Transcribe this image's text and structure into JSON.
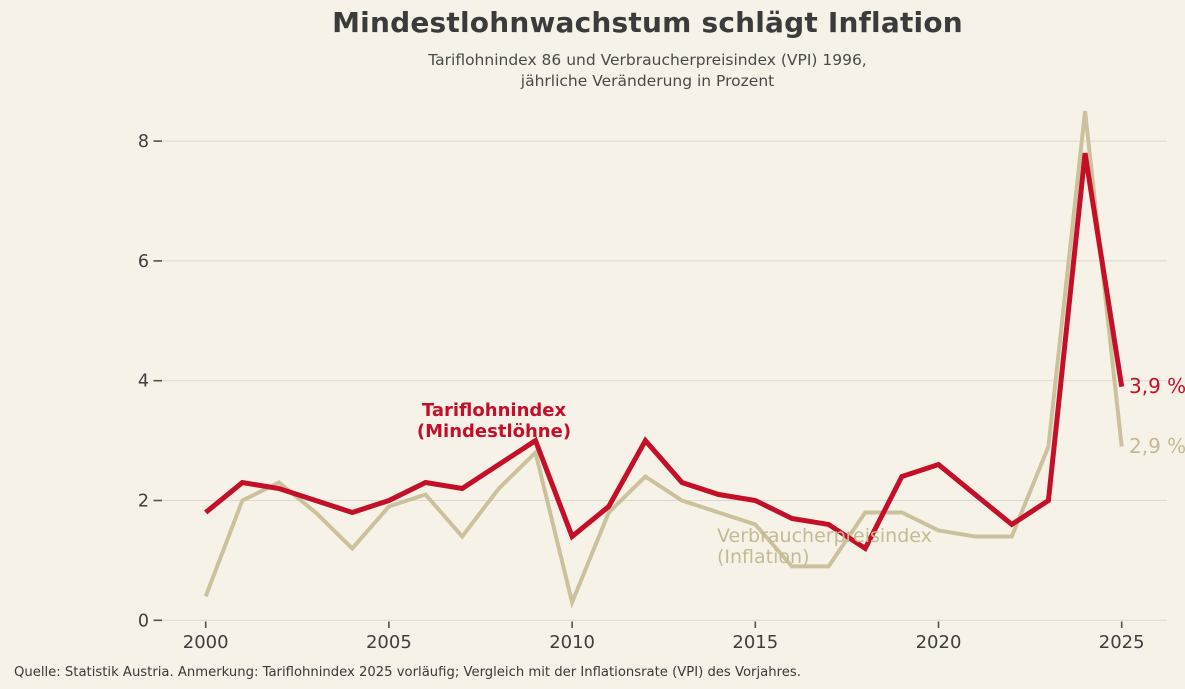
{
  "header": {
    "title": "Mindestlohnwachstum schlägt Inflation",
    "subtitle_line1": "Tariflohnindex 86 und Verbraucherpreisindex (VPI) 1996,",
    "subtitle_line2": "jährliche Veränderung in Prozent"
  },
  "chart_data": {
    "type": "line",
    "x": [
      2000,
      2001,
      2002,
      2003,
      2004,
      2005,
      2006,
      2007,
      2008,
      2009,
      2010,
      2011,
      2012,
      2013,
      2014,
      2015,
      2016,
      2017,
      2018,
      2019,
      2020,
      2021,
      2022,
      2023,
      2024,
      2025
    ],
    "x_ticks": [
      2000,
      2005,
      2010,
      2015,
      2020,
      2025
    ],
    "y_ticks": [
      0,
      2,
      4,
      6,
      8
    ],
    "ylim": [
      0,
      8.6
    ],
    "grid": true,
    "legend_position": "inline-annotations",
    "series": [
      {
        "name": "Tariflohnindex (Mindestlöhne)",
        "color": "#c50f28",
        "label_color": "#c50f28",
        "line_width": 5,
        "values": [
          1.8,
          2.3,
          2.2,
          2.0,
          1.8,
          2.0,
          2.3,
          2.2,
          2.6,
          3.0,
          1.4,
          1.9,
          3.0,
          2.3,
          2.1,
          2.0,
          1.7,
          1.6,
          1.2,
          2.4,
          2.6,
          2.1,
          1.6,
          2.0,
          7.8,
          3.9
        ],
        "annotation_line1": "Tariflohnindex",
        "annotation_line2": "(Mindestlöhne)",
        "end_label": "3,9 %"
      },
      {
        "name": "Verbraucherpreisindex (Inflation)",
        "color": "#cbc29d",
        "label_color": "#c3ba93",
        "line_width": 4,
        "values": [
          0.4,
          2.0,
          2.3,
          1.8,
          1.2,
          1.9,
          2.1,
          1.4,
          2.2,
          2.8,
          0.3,
          1.8,
          2.4,
          2.0,
          1.8,
          1.6,
          0.9,
          0.9,
          1.8,
          1.8,
          1.5,
          1.4,
          1.4,
          2.9,
          8.5,
          2.9
        ],
        "annotation_line1": "Verbraucherpreisindex",
        "annotation_line2": "(Inflation)",
        "end_label": "2,9 %"
      }
    ],
    "colors": {
      "background": "#f7f2e8",
      "grid": "#ddd8ce",
      "tick": "#55504a",
      "tick_text": "#3f3f3f"
    }
  },
  "footer": {
    "source_note": "Quelle: Statistik Austria. Anmerkung: Tariflohnindex 2025 vorläufig; Vergleich mit der Inflationsrate (VPI) des Vorjahres."
  }
}
